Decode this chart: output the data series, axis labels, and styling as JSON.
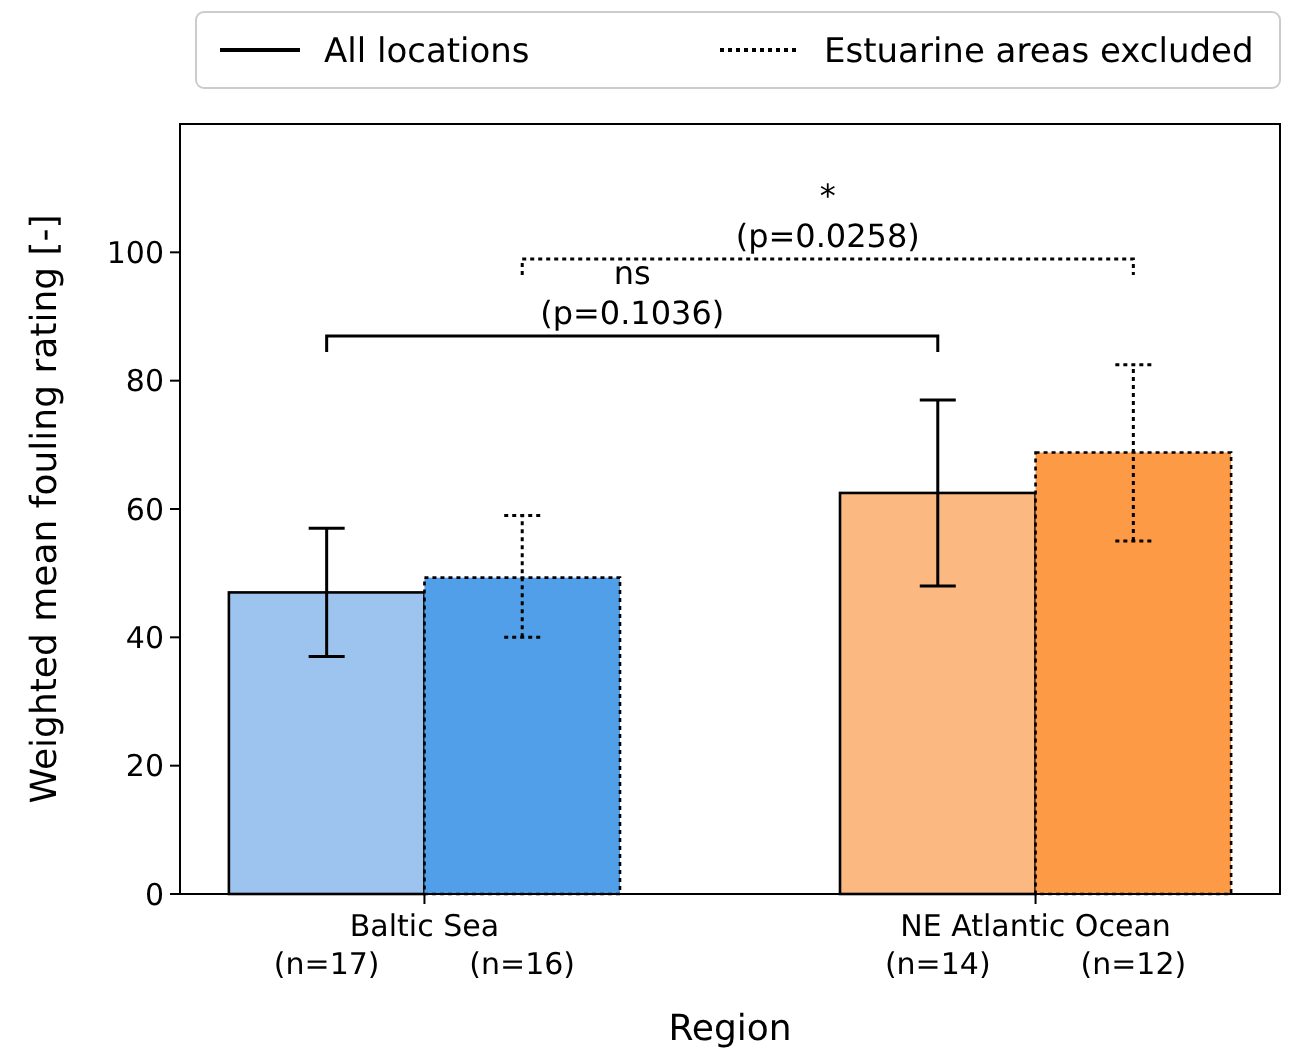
{
  "chart_data": {
    "type": "bar",
    "xlabel": "Region",
    "ylabel": "Weighted mean fouling rating [-]",
    "categories": [
      "Baltic Sea",
      "NE Atlantic Ocean"
    ],
    "series": [
      {
        "name": "All locations",
        "line_style": "solid",
        "colors": [
          "#9dc3ef",
          "#fbb880"
        ],
        "values": [
          47,
          62.5
        ],
        "errors": [
          [
            37,
            57
          ],
          [
            48,
            77
          ]
        ]
      },
      {
        "name": "Estuarine areas excluded",
        "line_style": "dotted",
        "colors": [
          "#519fe8",
          "#fd9a45"
        ],
        "values": [
          49.3,
          68.8
        ],
        "errors": [
          [
            40,
            59
          ],
          [
            55,
            82.5
          ]
        ]
      }
    ],
    "ylim": [
      0,
      120
    ],
    "yticks": [
      0,
      20,
      40,
      60,
      80,
      100
    ],
    "grid": false,
    "legend": "top",
    "annotations": [
      "(n=17)",
      "(n=16)",
      "(n=14)",
      "(n=12)",
      "ns\n(p=0.1036)",
      "*\n(p=0.0258)"
    ]
  }
}
